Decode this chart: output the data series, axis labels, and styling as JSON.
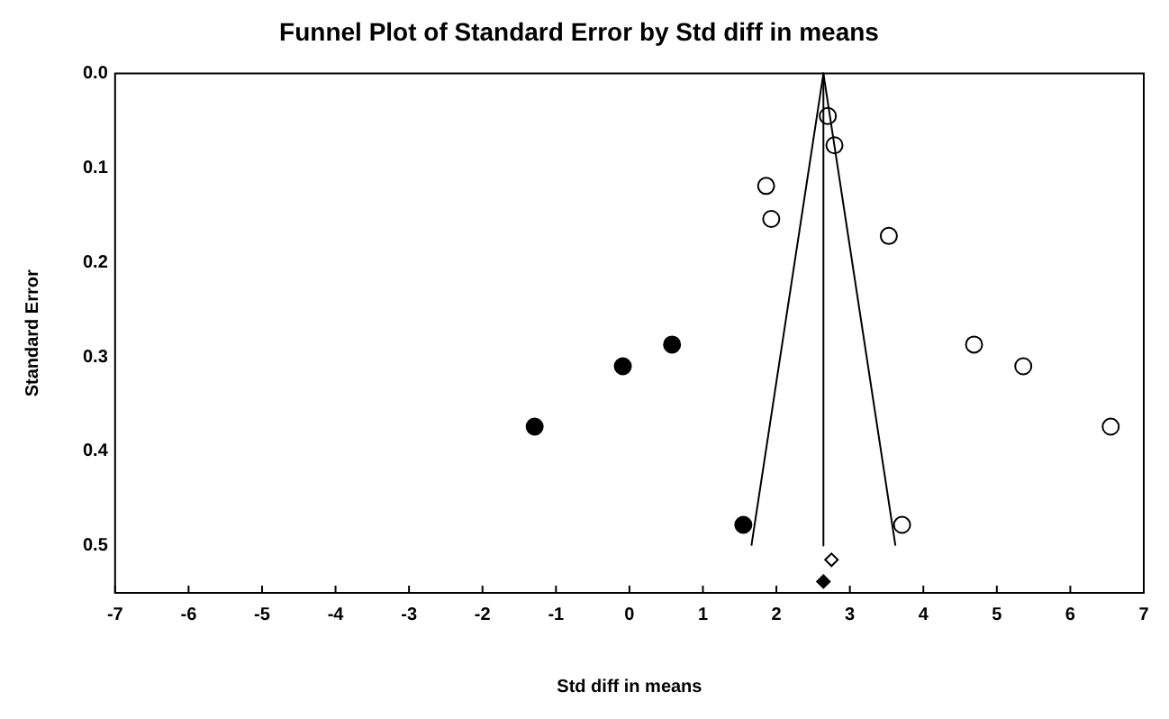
{
  "chart_data": {
    "type": "scatter",
    "title": "Funnel Plot of Standard Error by Std diff in means",
    "xlabel": "Std diff in means",
    "ylabel": "Standard Error",
    "xlim": [
      -7,
      7
    ],
    "xticks": [
      -7,
      -6,
      -5,
      -4,
      -3,
      -2,
      -1,
      0,
      1,
      2,
      3,
      4,
      5,
      6,
      7
    ],
    "ylim": [
      0.55,
      0
    ],
    "yticks": [
      {
        "value": 0,
        "label": "0.0"
      },
      0.1,
      0.2,
      0.3,
      0.4,
      0.5
    ],
    "grid": false,
    "legend": false,
    "series": [
      {
        "type": "line",
        "color": "#000000",
        "marker": "none",
        "x": [
          1.66,
          2.64,
          3.62
        ],
        "values": [
          0.5,
          0,
          0.5
        ]
      },
      {
        "type": "line",
        "color": "#000000",
        "marker": "none",
        "x": [
          2.64,
          2.64
        ],
        "values": [
          0,
          0.5
        ]
      },
      {
        "type": "scatter",
        "color": "#ffffff",
        "marker": "circle",
        "x": [
          2.7,
          2.79,
          1.86,
          1.93,
          3.53,
          4.69,
          5.36,
          6.55,
          3.71
        ],
        "values": [
          0.045,
          0.076,
          0.119,
          0.154,
          0.172,
          0.287,
          0.31,
          0.374,
          0.478
        ]
      },
      {
        "type": "scatter",
        "color": "#000000",
        "marker": "circle",
        "x": [
          -1.29,
          -0.09,
          0.58,
          1.55
        ],
        "values": [
          0.374,
          0.31,
          0.287,
          0.478
        ]
      },
      {
        "type": "scatter",
        "color": "#ffffff",
        "marker": "diamond",
        "x": [
          2.75
        ],
        "values": [
          0.515
        ]
      },
      {
        "type": "scatter",
        "color": "#000000",
        "marker": "diamond",
        "x": [
          2.64
        ],
        "values": [
          0.538
        ]
      }
    ]
  }
}
